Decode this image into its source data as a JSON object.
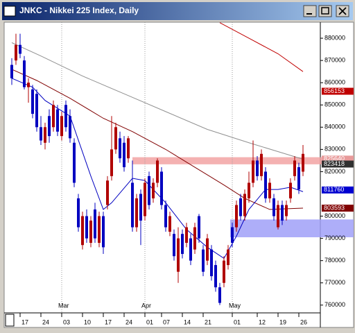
{
  "chart_data": {
    "type": "candlestick",
    "title": "JNKC - Nikkei 225 Index, Daily",
    "categories": [
      null,
      null,
      "17",
      null,
      null,
      null,
      null,
      "24",
      null,
      null,
      null,
      null,
      "03",
      null,
      null,
      null,
      null,
      "10",
      null,
      null,
      null,
      null,
      "17",
      null,
      null,
      null,
      null,
      "24",
      null,
      null,
      null,
      null,
      "01",
      null,
      null,
      null,
      "07",
      null,
      null,
      null,
      null,
      "14",
      null,
      null,
      null,
      null,
      "21",
      null,
      null,
      null,
      null,
      null,
      null,
      "01",
      null,
      null,
      null,
      null,
      null,
      "12",
      null,
      null,
      null,
      null,
      "19",
      null,
      null,
      null,
      null,
      "26",
      null
    ],
    "month_labels": [
      {
        "at": 12,
        "label": "Mar"
      },
      {
        "at": 32,
        "label": "Apr"
      },
      {
        "at": 53,
        "label": "May"
      }
    ],
    "up_color": "#b00000",
    "down_color": "#0000c0",
    "open": [
      868000,
      870000,
      877000,
      870000,
      858000,
      857000,
      855000,
      840000,
      833000,
      845000,
      840000,
      848000,
      836000,
      850000,
      845000,
      833000,
      808000,
      787000,
      800000,
      788000,
      803000,
      788000,
      800000,
      805000,
      818000,
      830000,
      835000,
      833000,
      826000,
      815000,
      795000,
      810000,
      800000,
      818000,
      808000,
      815000,
      820000,
      805000,
      793000,
      792000,
      775000,
      792000,
      788000,
      790000,
      785000,
      800000,
      785000,
      780000,
      785000,
      778000,
      768000,
      770000,
      778000,
      795000,
      795000,
      808000,
      800000,
      808000,
      815000,
      825000,
      818000,
      820000,
      808000,
      808000,
      795000,
      805000,
      800000,
      808000,
      818000,
      822000,
      820000
    ],
    "high": [
      871000,
      882000,
      882000,
      872000,
      862000,
      859000,
      857000,
      845000,
      842000,
      848000,
      852000,
      850000,
      847000,
      852000,
      848000,
      835000,
      810000,
      802000,
      803000,
      800000,
      806000,
      802000,
      802000,
      818000,
      845000,
      842000,
      838000,
      836000,
      836000,
      825000,
      810000,
      812000,
      817000,
      820000,
      817000,
      826000,
      822000,
      807000,
      802000,
      794000,
      795000,
      794000,
      797000,
      792000,
      797000,
      801000,
      787000,
      792000,
      787000,
      780000,
      770000,
      782000,
      787000,
      797000,
      807000,
      810000,
      812000,
      820000,
      834000,
      827000,
      830000,
      822000,
      817000,
      810000,
      807000,
      807000,
      807000,
      817000,
      827000,
      824000,
      832000
    ],
    "low": [
      859000,
      868000,
      871000,
      857000,
      851000,
      844000,
      838000,
      832000,
      830000,
      833000,
      838000,
      836000,
      834000,
      838000,
      833000,
      813000,
      793000,
      785000,
      788000,
      786000,
      788000,
      786000,
      783000,
      803000,
      816000,
      828000,
      824000,
      820000,
      824000,
      793000,
      793000,
      787000,
      798000,
      803000,
      806000,
      813000,
      803000,
      793000,
      791000,
      780000,
      770000,
      781000,
      786000,
      778000,
      783000,
      788000,
      773000,
      778000,
      771000,
      766000,
      760000,
      768000,
      776000,
      786000,
      793000,
      798000,
      798000,
      806000,
      813000,
      816000,
      816000,
      806000,
      806000,
      798000,
      794000,
      796000,
      798000,
      806000,
      816000,
      810000,
      818000
    ],
    "close": [
      862000,
      877000,
      873000,
      858000,
      860000,
      846000,
      840000,
      834000,
      840000,
      836000,
      850000,
      838000,
      845000,
      840000,
      835000,
      815000,
      795000,
      800000,
      790000,
      798000,
      790000,
      800000,
      786000,
      816000,
      830000,
      840000,
      826000,
      822000,
      835000,
      795000,
      808000,
      798000,
      815000,
      805000,
      815000,
      825000,
      805000,
      795000,
      800000,
      782000,
      790000,
      783000,
      795000,
      780000,
      795000,
      790000,
      775000,
      790000,
      773000,
      768000,
      761000,
      780000,
      785000,
      788000,
      805000,
      800000,
      810000,
      815000,
      825000,
      818000,
      828000,
      808000,
      815000,
      800000,
      805000,
      798000,
      805000,
      815000,
      825000,
      812000,
      828000
    ],
    "series": [
      {
        "color": "#c00000",
        "x": [
          50,
          57,
          64,
          70
        ],
        "values": [
          887000,
          880000,
          873000,
          865000
        ]
      },
      {
        "color": "#909090",
        "x": [
          0,
          7,
          17,
          27,
          37,
          47,
          57,
          70
        ],
        "values": [
          878000,
          872000,
          863000,
          855000,
          847000,
          839000,
          833000,
          825600
        ]
      },
      {
        "color": "#800000",
        "x": [
          0,
          6,
          14,
          22,
          29,
          37,
          44,
          51,
          56,
          62,
          70
        ],
        "values": [
          866000,
          861000,
          853000,
          844000,
          838000,
          830000,
          822000,
          814000,
          808000,
          803000,
          803600
        ]
      },
      {
        "color": "#0000c0",
        "x": [
          0,
          5,
          8,
          14,
          19,
          22,
          24,
          29,
          32,
          37,
          42,
          47,
          51,
          54,
          57,
          61,
          64,
          67,
          70
        ],
        "values": [
          862000,
          858000,
          852000,
          845000,
          818000,
          803000,
          806000,
          817000,
          816000,
          806000,
          794000,
          786000,
          781000,
          791000,
          803000,
          812000,
          812000,
          813000,
          811000
        ]
      }
    ],
    "zones": [
      {
        "start": 29,
        "from": 826500,
        "to": 823300,
        "color": "#f2a3a3"
      },
      {
        "start": 52.5,
        "from": 798500,
        "to": 790500,
        "color": "#a0a0f8"
      }
    ],
    "price_tags": [
      {
        "value": 856153,
        "color": "#c00000"
      },
      {
        "value": 825640,
        "color": "#e89a9a"
      },
      {
        "value": 823418,
        "color": "#303030"
      },
      {
        "value": 811760,
        "color": "#0000d0"
      },
      {
        "value": 803593,
        "color": "#800000"
      }
    ],
    "ylim": [
      756500,
      887200
    ],
    "yticks": [
      760000,
      770000,
      780000,
      790000,
      800000,
      820000,
      830000,
      840000,
      850000,
      860000,
      870000,
      880000
    ]
  }
}
